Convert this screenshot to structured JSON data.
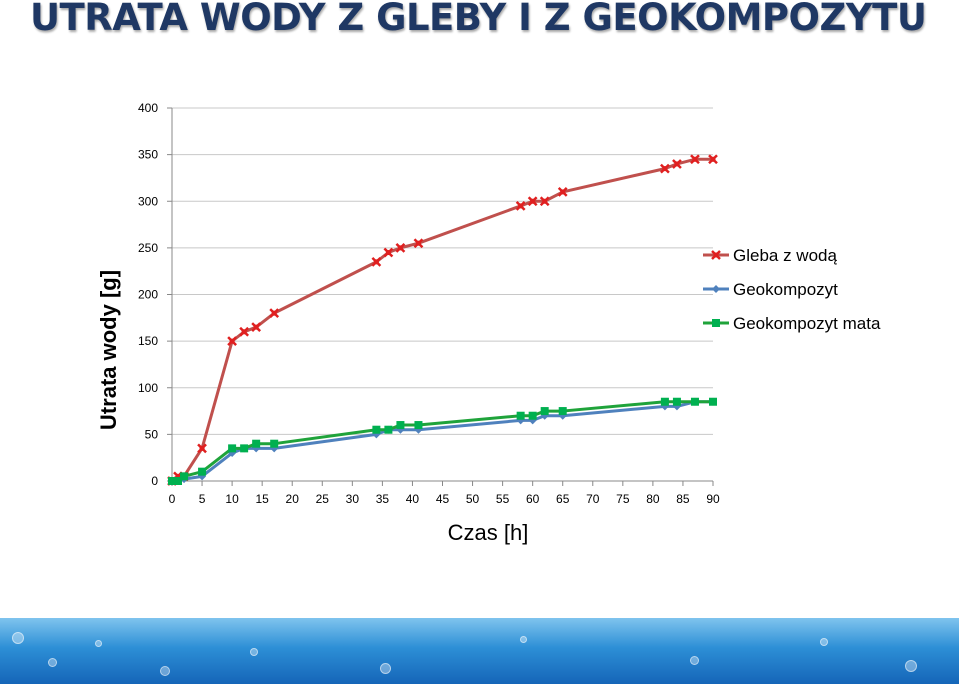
{
  "slide": {
    "title": "UTRATA WODY Z GLEBY I Z GEOKOMPOZYTU"
  },
  "chart_data": {
    "type": "line",
    "title": "",
    "xlabel": "Czas [h]",
    "ylabel": "Utrata wody [g]",
    "xlim": [
      0,
      90
    ],
    "ylim": [
      0,
      400
    ],
    "x_ticks": [
      "0",
      "5",
      "10",
      "15",
      "20",
      "25",
      "30",
      "35",
      "40",
      "45",
      "50",
      "55",
      "60",
      "65",
      "70",
      "75",
      "80",
      "85",
      "90"
    ],
    "y_ticks": [
      "0",
      "50",
      "100",
      "150",
      "200",
      "250",
      "300",
      "350",
      "400"
    ],
    "grid": "horizontal",
    "legend_position": "right",
    "series": [
      {
        "name": "Gleba z wodą",
        "color": "#c0504d",
        "marker": "x",
        "marker_color": "#e02020",
        "x": [
          0,
          1,
          2,
          5,
          10,
          12,
          14,
          17,
          34,
          36,
          38,
          41,
          58,
          60,
          62,
          65,
          82,
          84,
          87,
          90
        ],
        "y": [
          0,
          5,
          5,
          35,
          150,
          160,
          165,
          180,
          235,
          245,
          250,
          255,
          295,
          300,
          300,
          310,
          335,
          340,
          345,
          345
        ]
      },
      {
        "name": "Geokompozyt",
        "color": "#4f81bd",
        "marker": "diamond",
        "marker_color": "#4f81bd",
        "x": [
          0,
          1,
          2,
          5,
          10,
          12,
          14,
          17,
          34,
          36,
          38,
          41,
          58,
          60,
          62,
          65,
          82,
          84,
          87,
          90
        ],
        "y": [
          0,
          0,
          2,
          5,
          30,
          35,
          35,
          35,
          50,
          55,
          55,
          55,
          65,
          65,
          70,
          70,
          80,
          80,
          85,
          85
        ]
      },
      {
        "name": "Geokompozyt mata",
        "color": "#1fa33a",
        "marker": "square",
        "marker_color": "#00b050",
        "x": [
          0,
          1,
          2,
          5,
          10,
          12,
          14,
          17,
          34,
          36,
          38,
          41,
          58,
          60,
          62,
          65,
          82,
          84,
          87,
          90
        ],
        "y": [
          0,
          0,
          5,
          10,
          35,
          35,
          40,
          40,
          55,
          55,
          60,
          60,
          70,
          70,
          75,
          75,
          85,
          85,
          85,
          85
        ]
      }
    ]
  }
}
